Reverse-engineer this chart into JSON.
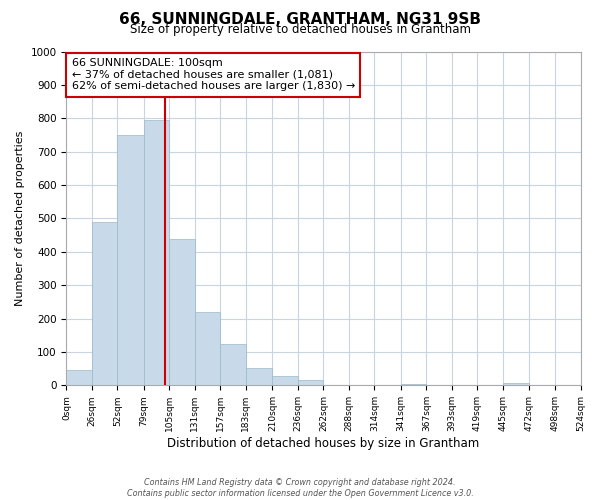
{
  "title": "66, SUNNINGDALE, GRANTHAM, NG31 9SB",
  "subtitle": "Size of property relative to detached houses in Grantham",
  "xlabel": "Distribution of detached houses by size in Grantham",
  "ylabel": "Number of detached properties",
  "bin_edges": [
    0,
    26,
    52,
    79,
    105,
    131,
    157,
    183,
    210,
    236,
    262,
    288,
    314,
    341,
    367,
    393,
    419,
    445,
    472,
    498,
    524
  ],
  "bar_heights": [
    45,
    488,
    750,
    795,
    438,
    220,
    125,
    52,
    28,
    15,
    0,
    0,
    0,
    5,
    0,
    0,
    0,
    8,
    0,
    0
  ],
  "bar_color": "#c8daea",
  "bar_edge_color": "#9ab8cc",
  "property_size": 100,
  "property_line_color": "#cc0000",
  "annotation_line1": "66 SUNNINGDALE: 100sqm",
  "annotation_line2": "← 37% of detached houses are smaller (1,081)",
  "annotation_line3": "62% of semi-detached houses are larger (1,830) →",
  "annotation_box_color": "#ffffff",
  "annotation_box_edge_color": "#cc0000",
  "ylim": [
    0,
    1000
  ],
  "tick_labels": [
    "0sqm",
    "26sqm",
    "52sqm",
    "79sqm",
    "105sqm",
    "131sqm",
    "157sqm",
    "183sqm",
    "210sqm",
    "236sqm",
    "262sqm",
    "288sqm",
    "314sqm",
    "341sqm",
    "367sqm",
    "393sqm",
    "419sqm",
    "445sqm",
    "472sqm",
    "498sqm",
    "524sqm"
  ],
  "footer_line1": "Contains HM Land Registry data © Crown copyright and database right 2024.",
  "footer_line2": "Contains public sector information licensed under the Open Government Licence v3.0.",
  "bg_color": "#ffffff",
  "grid_color": "#c8d4e0"
}
